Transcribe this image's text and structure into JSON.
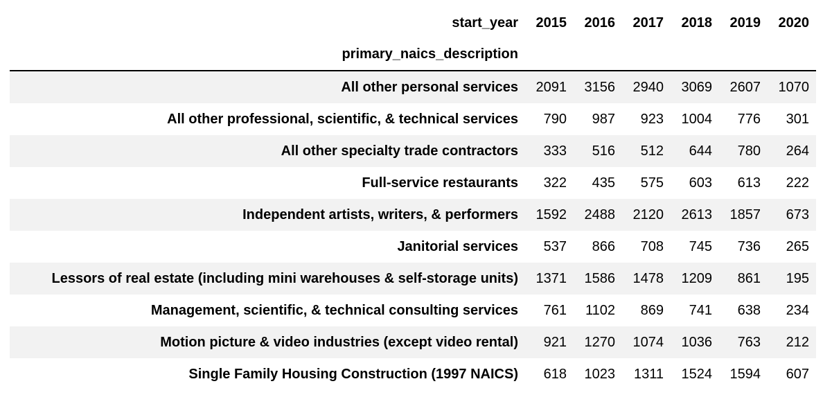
{
  "table": {
    "columns_name": "start_year",
    "index_name": "primary_naics_description",
    "columns": [
      "2015",
      "2016",
      "2017",
      "2018",
      "2019",
      "2020"
    ],
    "rows": [
      {
        "label": "All other personal services",
        "values": [
          "2091",
          "3156",
          "2940",
          "3069",
          "2607",
          "1070"
        ]
      },
      {
        "label": "All other professional, scientific, & technical services",
        "values": [
          "790",
          "987",
          "923",
          "1004",
          "776",
          "301"
        ]
      },
      {
        "label": "All other specialty trade contractors",
        "values": [
          "333",
          "516",
          "512",
          "644",
          "780",
          "264"
        ]
      },
      {
        "label": "Full-service restaurants",
        "values": [
          "322",
          "435",
          "575",
          "603",
          "613",
          "222"
        ]
      },
      {
        "label": "Independent artists, writers, & performers",
        "values": [
          "1592",
          "2488",
          "2120",
          "2613",
          "1857",
          "673"
        ]
      },
      {
        "label": "Janitorial services",
        "values": [
          "537",
          "866",
          "708",
          "745",
          "736",
          "265"
        ]
      },
      {
        "label": "Lessors of real estate (including mini warehouses & self-storage units)",
        "values": [
          "1371",
          "1586",
          "1478",
          "1209",
          "861",
          "195"
        ]
      },
      {
        "label": "Management, scientific, & technical consulting services",
        "values": [
          "761",
          "1102",
          "869",
          "741",
          "638",
          "234"
        ]
      },
      {
        "label": "Motion picture & video industries (except video rental)",
        "values": [
          "921",
          "1270",
          "1074",
          "1036",
          "763",
          "212"
        ]
      },
      {
        "label": "Single Family Housing Construction (1997 NAICS)",
        "values": [
          "618",
          "1023",
          "1311",
          "1524",
          "1594",
          "607"
        ]
      }
    ]
  }
}
